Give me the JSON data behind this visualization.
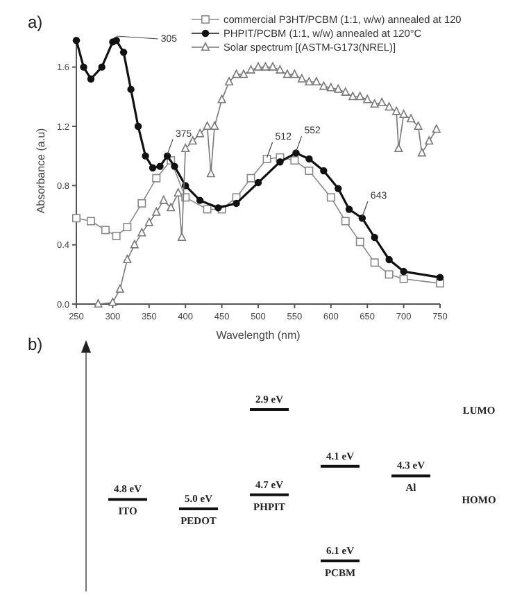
{
  "chart_data": [
    {
      "type": "line",
      "xlabel": "Wavelength (nm)",
      "ylabel": "Absorbance (a.u)",
      "xlim": [
        250,
        750
      ],
      "xticks": [
        250,
        300,
        350,
        400,
        450,
        500,
        550,
        600,
        650,
        700,
        750
      ],
      "ylim": [
        0,
        1.8
      ],
      "yticks": [
        {
          "value": 0,
          "label": "0.0"
        },
        {
          "value": 0.4,
          "label": "0.4"
        },
        {
          "value": 0.8,
          "label": "0.8"
        },
        {
          "value": 1.2,
          "label": "1.2"
        },
        {
          "value": 1.6,
          "label": "1.6"
        }
      ],
      "legend": "top right",
      "grid": false,
      "annotations": [
        "a)",
        {
          "text": "305",
          "x": 305,
          "y": 1.8
        },
        {
          "text": "375",
          "x": 375,
          "y": 1.0
        },
        {
          "text": "512",
          "x": 512,
          "y": 0.98
        },
        {
          "text": "552",
          "x": 552,
          "y": 1.02
        },
        {
          "text": "643",
          "x": 643,
          "y": 0.58
        }
      ],
      "series": [
        {
          "name": "commercial P3HT/PCBM (1:1, w/w) annealed at 120",
          "color": "#888888",
          "marker": "square",
          "x": [
            250,
            270,
            290,
            305,
            320,
            340,
            360,
            380,
            400,
            430,
            450,
            470,
            490,
            512,
            530,
            550,
            570,
            600,
            620,
            640,
            660,
            680,
            700,
            750
          ],
          "values": [
            0.58,
            0.56,
            0.5,
            0.46,
            0.52,
            0.68,
            0.85,
            0.97,
            0.72,
            0.64,
            0.64,
            0.72,
            0.85,
            0.98,
            0.99,
            0.97,
            0.9,
            0.72,
            0.56,
            0.42,
            0.28,
            0.2,
            0.17,
            0.14
          ]
        },
        {
          "name": "PHPIT/PCBM (1:1, w/w) annealed at 120°C",
          "color": "#111111",
          "marker": "circle",
          "x": [
            250,
            260,
            270,
            285,
            300,
            305,
            315,
            325,
            335,
            345,
            355,
            365,
            375,
            385,
            400,
            420,
            445,
            470,
            500,
            530,
            552,
            570,
            590,
            610,
            625,
            643,
            660,
            680,
            700,
            750
          ],
          "values": [
            1.78,
            1.6,
            1.52,
            1.6,
            1.77,
            1.78,
            1.7,
            1.45,
            1.2,
            1.0,
            0.92,
            0.93,
            1.0,
            0.93,
            0.8,
            0.7,
            0.65,
            0.68,
            0.82,
            0.96,
            1.02,
            0.98,
            0.9,
            0.78,
            0.64,
            0.58,
            0.45,
            0.3,
            0.22,
            0.18
          ]
        },
        {
          "name": "Solar spectrum [(ASTM-G173(NREL)]",
          "color": "#777777",
          "marker": "triangle",
          "x": [
            280,
            300,
            310,
            320,
            330,
            340,
            350,
            360,
            370,
            380,
            390,
            395,
            400,
            410,
            420,
            430,
            435,
            440,
            450,
            460,
            470,
            480,
            490,
            500,
            510,
            520,
            530,
            540,
            550,
            560,
            570,
            580,
            590,
            600,
            610,
            620,
            630,
            640,
            650,
            660,
            670,
            680,
            690,
            693,
            700,
            710,
            720,
            725,
            735,
            745
          ],
          "values": [
            0,
            0.01,
            0.1,
            0.3,
            0.4,
            0.48,
            0.55,
            0.62,
            0.7,
            0.65,
            0.75,
            0.45,
            1.05,
            1.1,
            1.15,
            1.2,
            0.88,
            1.2,
            1.38,
            1.5,
            1.55,
            1.55,
            1.58,
            1.6,
            1.6,
            1.6,
            1.58,
            1.55,
            1.55,
            1.52,
            1.5,
            1.5,
            1.47,
            1.46,
            1.45,
            1.43,
            1.4,
            1.4,
            1.38,
            1.35,
            1.36,
            1.33,
            1.3,
            1.05,
            1.28,
            1.25,
            1.2,
            1.02,
            1.1,
            1.18
          ]
        }
      ]
    },
    {
      "type": "other",
      "categories": [
        "ITO",
        "PEDOT",
        "PHPIT",
        "PCBM",
        "Al"
      ],
      "annotations": [
        "b)"
      ],
      "series": [
        {
          "name": "LUMO",
          "color": "#111111",
          "values": [
            null,
            null,
            2.9,
            4.1,
            null
          ],
          "value_labels": [
            null,
            null,
            "2.9 eV",
            "4.1 eV",
            null
          ]
        },
        {
          "name": "HOMO",
          "color": "#111111",
          "values": [
            4.8,
            5.0,
            4.7,
            6.1,
            4.3
          ],
          "value_labels": [
            "4.8 eV",
            "5.0 eV",
            "4.7 eV",
            "6.1 eV",
            "4.3 eV"
          ]
        }
      ]
    }
  ]
}
